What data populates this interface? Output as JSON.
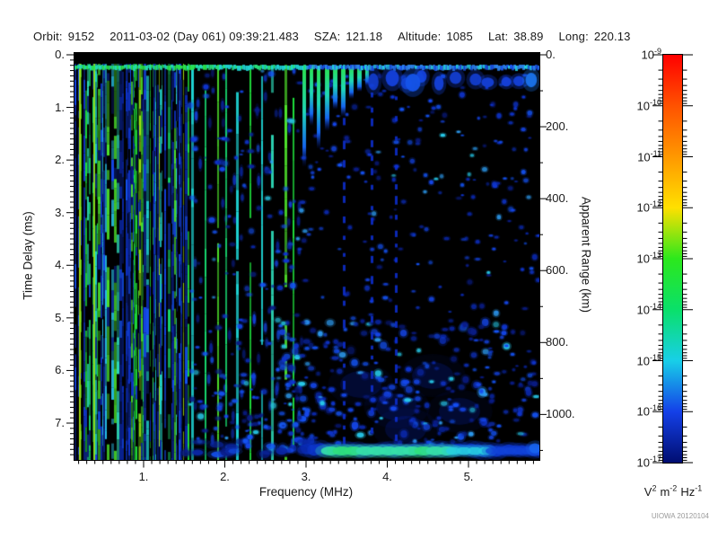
{
  "header": {
    "fields": [
      {
        "label": "Orbit:",
        "value": "9152"
      },
      {
        "label": "",
        "value": "2011-03-02 (Day 061) 09:39:21.483"
      },
      {
        "label": "SZA:",
        "value": "121.18"
      },
      {
        "label": "Altitude:",
        "value": "1085"
      },
      {
        "label": "Lat:",
        "value": "38.89"
      },
      {
        "label": "Long:",
        "value": "220.13"
      }
    ]
  },
  "chart_data": {
    "type": "heatmap",
    "subtype": "radar-sounder-ionogram-spectrogram",
    "background": "#000000",
    "x_axis": {
      "label": "Frequency (MHz)",
      "tick_values": [
        1,
        2,
        3,
        4,
        5
      ],
      "tick_labels": [
        "1.",
        "2.",
        "3.",
        "4.",
        "5."
      ],
      "minor_tick_step": 0.1,
      "range": [
        0.14,
        5.87
      ]
    },
    "y_axis_left": {
      "label": "Time Delay (ms)",
      "tick_values": [
        0,
        1,
        2,
        3,
        4,
        5,
        6,
        7
      ],
      "tick_labels": [
        "0.",
        "1.",
        "2.",
        "3.",
        "4.",
        "5.",
        "6.",
        "7."
      ],
      "minor_tick_step": 0.1,
      "range": [
        0,
        7.7
      ]
    },
    "y_axis_right": {
      "label": "Apparent Range (km)",
      "tick_values": [
        0,
        200,
        400,
        600,
        800,
        1000
      ],
      "tick_labels": [
        "0.",
        "200.",
        "400.",
        "600.",
        "800.",
        "1000."
      ],
      "minor_tick_step": 100,
      "range": [
        0,
        1127
      ]
    },
    "colorbar": {
      "scale": "log",
      "exponent_base": "10",
      "tick_exponents": [
        "-9",
        "-10",
        "-11",
        "-12",
        "-13",
        "-14",
        "-15",
        "-16",
        "-17"
      ],
      "unit_parts": [
        {
          "text": "V",
          "sup": "2"
        },
        {
          "text": "m",
          "sup": "-2"
        },
        {
          "text": "Hz",
          "sup": "-1"
        }
      ],
      "colors_top_to_bottom": [
        "#ff0000",
        "#ff5200",
        "#ff9800",
        "#ffe000",
        "#2ce81c",
        "#0ae06a",
        "#18cfe8",
        "#1440e8",
        "#000d70"
      ]
    },
    "features": [
      {
        "name": "electron-plasma-oscillation-harmonics",
        "description": "dense vertical green/cyan/blue stripes",
        "freq_mhz": [
          0.14,
          2.9
        ],
        "delay_ms": [
          0.25,
          7.7
        ]
      },
      {
        "name": "transmitter-leakage-line",
        "description": "bright horizontal line across all frequencies",
        "freq_mhz": [
          0.14,
          5.87
        ],
        "delay_ms": [
          0.25,
          0.35
        ]
      },
      {
        "name": "ionospheric-echo-cusps",
        "description": "green-cyan streaks hanging below the leakage line",
        "freq_mhz": [
          2.8,
          3.7
        ],
        "delay_ms": [
          0.3,
          1.9
        ]
      },
      {
        "name": "scattered-diffuse-echoes",
        "description": "speckled blue blobs, densest near 3.5-4.5 MHz at 4-7.5 ms",
        "freq_mhz": [
          1.5,
          5.87
        ],
        "delay_ms": [
          0.5,
          7.6
        ]
      },
      {
        "name": "surface-reflection-band",
        "description": "horizontal blue band with green-cyan core near the bottom edge",
        "freq_mhz": [
          2.1,
          5.87
        ],
        "delay_ms": [
          7.25,
          7.5
        ]
      }
    ]
  },
  "watermark": "UIOWA 20120104"
}
